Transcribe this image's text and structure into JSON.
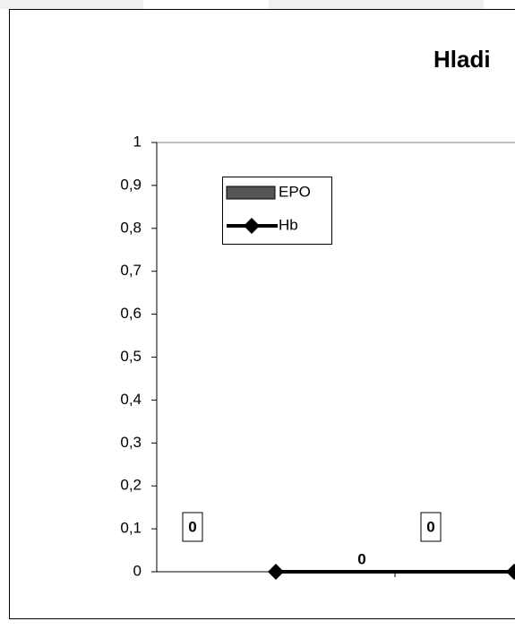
{
  "chart_data": {
    "type": "bar-line",
    "title": "Hladi",
    "categories": [
      null,
      null
    ],
    "series": [
      {
        "name": "EPO",
        "type": "bar",
        "color": "#555555",
        "values": [
          0,
          0
        ]
      },
      {
        "name": "Hb",
        "type": "line",
        "color": "#000000",
        "values": [
          0,
          0
        ]
      }
    ],
    "ylim": [
      0,
      1
    ],
    "yticks": [
      0,
      {
        "value": 0.1,
        "label": "0,1"
      },
      {
        "value": 0.2,
        "label": "0,2"
      },
      {
        "value": 0.3,
        "label": "0,3"
      },
      {
        "value": 0.4,
        "label": "0,4"
      },
      {
        "value": 0.5,
        "label": "0,5"
      },
      {
        "value": 0.6,
        "label": "0,6"
      },
      {
        "value": 0.7,
        "label": "0,7"
      },
      {
        "value": 0.8,
        "label": "0,8"
      },
      {
        "value": 0.9,
        "label": "0,9"
      },
      1
    ]
  }
}
